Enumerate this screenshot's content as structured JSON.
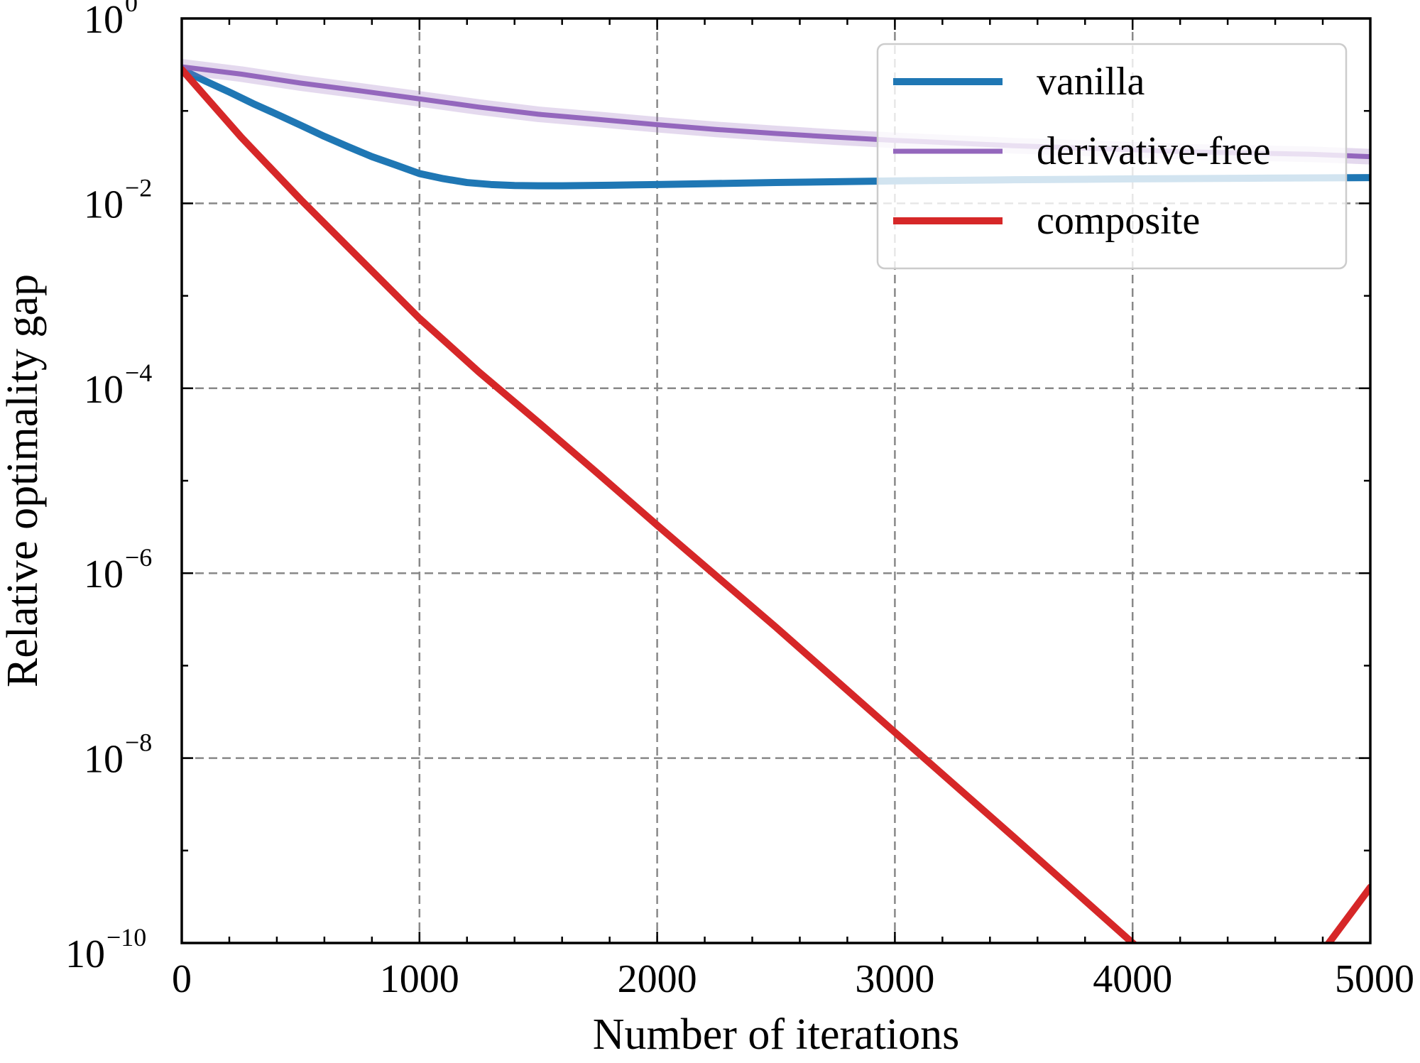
{
  "chart_data": {
    "type": "line",
    "title": "",
    "xlabel": "Number of iterations",
    "ylabel": "Relative optimality gap",
    "xlim": [
      0,
      5000
    ],
    "ylim": [
      1e-10,
      1
    ],
    "yscale": "log",
    "grid": true,
    "legend_position": "top-right",
    "x_ticks": [
      {
        "value": 0,
        "label": "0"
      },
      {
        "value": 1000,
        "label": "1000"
      },
      {
        "value": 2000,
        "label": "2000"
      },
      {
        "value": 3000,
        "label": "3000"
      },
      {
        "value": 4000,
        "label": "4000"
      },
      {
        "value": 5000,
        "label": "5000"
      }
    ],
    "y_ticks": [
      {
        "value": 1,
        "base": "10",
        "exp": "0"
      },
      {
        "value": 0.01,
        "base": "10",
        "exp": "−2"
      },
      {
        "value": 0.0001,
        "base": "10",
        "exp": "−4"
      },
      {
        "value": 1e-06,
        "base": "10",
        "exp": "−6"
      },
      {
        "value": 1e-08,
        "base": "10",
        "exp": "−8"
      },
      {
        "value": 1e-10,
        "base": "10",
        "exp": "−10"
      }
    ],
    "series": [
      {
        "name": "vanilla",
        "color": "#1f77b4",
        "x": [
          0,
          100,
          200,
          300,
          400,
          500,
          600,
          700,
          800,
          900,
          1000,
          1100,
          1200,
          1300,
          1400,
          1500,
          1600,
          1700,
          1800,
          2000,
          2500,
          3000,
          3500,
          4000,
          4500,
          5000
        ],
        "y": [
          0.28,
          0.21,
          0.16,
          0.12,
          0.092,
          0.07,
          0.053,
          0.041,
          0.032,
          0.026,
          0.021,
          0.0185,
          0.0168,
          0.016,
          0.0156,
          0.0155,
          0.0155,
          0.0156,
          0.0157,
          0.016,
          0.0168,
          0.0175,
          0.018,
          0.0184,
          0.0187,
          0.019
        ]
      },
      {
        "name": "derivative-free",
        "color": "#9467bd",
        "x": [
          0,
          250,
          500,
          750,
          1000,
          1250,
          1500,
          1750,
          2000,
          2250,
          2500,
          2750,
          3000,
          3250,
          3500,
          3750,
          4000,
          4250,
          4500,
          4750,
          5000
        ],
        "y": [
          0.3,
          0.25,
          0.2,
          0.165,
          0.135,
          0.11,
          0.092,
          0.081,
          0.071,
          0.063,
          0.057,
          0.052,
          0.048,
          0.045,
          0.042,
          0.04,
          0.038,
          0.036,
          0.035,
          0.034,
          0.032
        ]
      },
      {
        "name": "composite",
        "color": "#d62728",
        "x": [
          0,
          250,
          500,
          750,
          1000,
          1250,
          1500,
          1750,
          2000,
          2500,
          3000,
          3500,
          4000,
          4500,
          5000
        ],
        "y": [
          0.28,
          0.052,
          0.011,
          0.0025,
          0.00057,
          0.00015,
          4.3e-05,
          1.2e-05,
          3.3e-06,
          2.6e-07,
          1.9e-08,
          1.4e-09,
          1e-10,
          7.5e-12,
          4e-10
        ]
      }
    ]
  }
}
